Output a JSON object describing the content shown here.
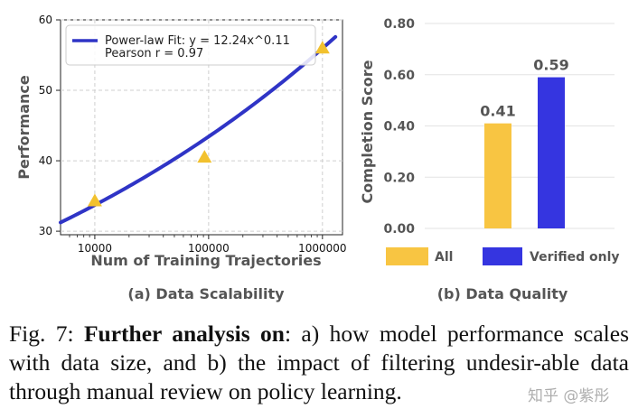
{
  "chart_data": [
    {
      "type": "scatter",
      "subcaption": "(a) Data Scalability",
      "xlabel": "Num of Training Trajectories",
      "ylabel": "Performance",
      "xscale": "log",
      "xlim": [
        5000,
        1500000
      ],
      "ylim": [
        29.5,
        60
      ],
      "xticks": [
        10000,
        100000,
        1000000
      ],
      "xtick_labels": [
        "10000",
        "100000",
        "1000000"
      ],
      "yticks": [
        30,
        40,
        50,
        60
      ],
      "ytick_labels": [
        "30",
        "40",
        "50",
        "60"
      ],
      "grid": true,
      "legend_position": "top-left",
      "points": {
        "name": "Observed",
        "x": [
          10000,
          92000,
          1000000
        ],
        "y": [
          34.3,
          40.5,
          56.0
        ],
        "marker": "triangle",
        "color": "#f2c12e"
      },
      "fit": {
        "name": "Power-law Fit: y = 12.24x^0.11",
        "coef": 12.24,
        "exponent": 0.11,
        "x_range": [
          5000,
          1300000
        ],
        "color": "#2f34c6"
      },
      "legend": [
        "Power-law Fit: y = 12.24x^0.11",
        "Pearson r = 0.97"
      ]
    },
    {
      "type": "bar",
      "subcaption": "(b) Data Quality",
      "xlabel": "",
      "ylabel": "Completion Score",
      "categories": [
        "All",
        "Verified only"
      ],
      "values": [
        0.41,
        0.59
      ],
      "value_labels": [
        "0.41",
        "0.59"
      ],
      "colors": [
        "#f8c542",
        "#3535e0"
      ],
      "ylim": [
        0,
        0.8
      ],
      "yticks": [
        0.0,
        0.2,
        0.4,
        0.6,
        0.8
      ],
      "ytick_labels": [
        "0.00",
        "0.20",
        "0.40",
        "0.60",
        "0.80"
      ],
      "grid": true,
      "legend_position": "bottom"
    }
  ],
  "caption": {
    "label": "Fig. 7:",
    "bold": "Further analysis on",
    "text": ": a) how model performance scales with data size, and b) the impact of filtering undesir-able data through manual review on policy learning."
  },
  "watermark": "知乎 @紫彤"
}
